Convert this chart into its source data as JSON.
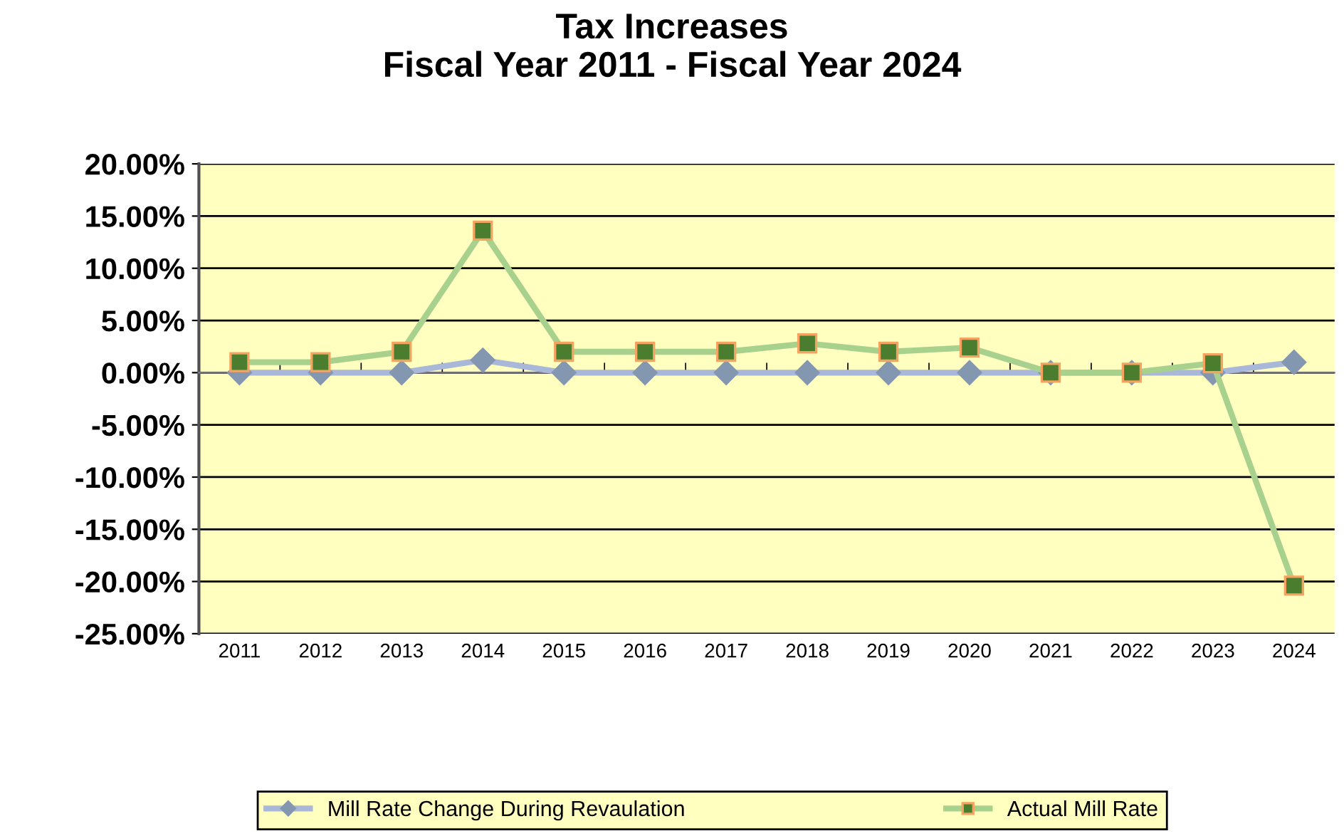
{
  "chart_data": {
    "type": "line",
    "title": "Tax Increases\nFiscal Year 2011 - Fiscal Year 2024",
    "categories": [
      "2011",
      "2012",
      "2013",
      "2014",
      "2015",
      "2016",
      "2017",
      "2018",
      "2019",
      "2020",
      "2021",
      "2022",
      "2023",
      "2024"
    ],
    "series": [
      {
        "name": "Mill Rate Change During Revaulation",
        "color": "#a9b8d8",
        "marker": "diamond",
        "values": [
          0,
          0,
          0,
          1.2,
          0,
          0,
          0,
          0,
          0,
          0,
          0,
          0,
          0,
          1.0
        ]
      },
      {
        "name": "Actual Mill Rate",
        "color": "#a9d18e",
        "marker": "square",
        "values": [
          1.0,
          1.0,
          2.0,
          13.6,
          2.0,
          2.0,
          2.0,
          2.8,
          2.0,
          2.4,
          0,
          0,
          0.9,
          -20.4
        ]
      }
    ],
    "ylim": [
      -25,
      20
    ],
    "yticks": [
      {
        "value": -25,
        "label": "-25.00%"
      },
      {
        "value": -20,
        "label": "-20.00%"
      },
      {
        "value": -15,
        "label": "-15.00%"
      },
      {
        "value": -10,
        "label": "-10.00%"
      },
      {
        "value": -5,
        "label": "-5.00%"
      },
      {
        "value": 0,
        "label": "0.00%"
      },
      {
        "value": 5,
        "label": "5.00%"
      },
      {
        "value": 10,
        "label": "10.00%"
      },
      {
        "value": 15,
        "label": "15.00%"
      },
      {
        "value": 20,
        "label": "20.00%"
      }
    ],
    "grid": "y",
    "legend": "bottom",
    "line_style": "solid"
  }
}
